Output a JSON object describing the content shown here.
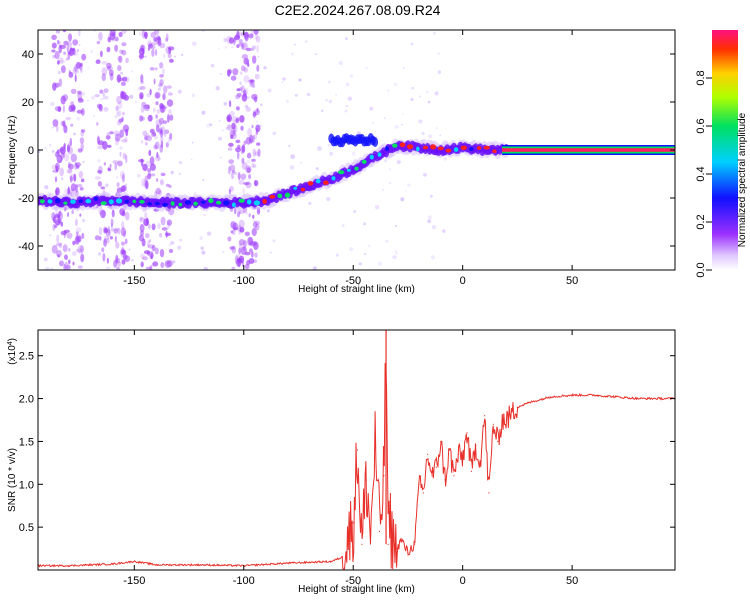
{
  "title": "C2E2.2024.267.08.09.R24",
  "colors": {
    "snr_line": "#e8302a",
    "ridge_high": "#ff2020",
    "ridge_mid": "#00e060",
    "ridge_low": "#1010ff",
    "scatter": "#a040ff"
  },
  "chart_data": [
    {
      "type": "heatmap",
      "xlabel": "Height of straight line (km)",
      "ylabel": "Frequency (Hz)",
      "xlim": [
        -194,
        97
      ],
      "ylim": [
        -50,
        50
      ],
      "xticks": [
        -150,
        -100,
        -50,
        0,
        50
      ],
      "xtick_labels": [
        "-150",
        "-100",
        "-50",
        "0",
        "50"
      ],
      "yticks": [
        -40,
        -20,
        0,
        20,
        40
      ],
      "ytick_labels": [
        "-40",
        "-20",
        "0",
        "20",
        "40"
      ],
      "colorbar": {
        "label": "Normalized spectral amplitude",
        "range": [
          0,
          1
        ],
        "ticks": [
          0.0,
          0.2,
          0.4,
          0.6,
          0.8
        ],
        "tick_labels": [
          "0.0",
          "0.2",
          "0.4",
          "0.6",
          "0.8"
        ]
      },
      "ridge": {
        "x": [
          -194,
          -180,
          -160,
          -140,
          -120,
          -100,
          -90,
          -80,
          -70,
          -60,
          -50,
          -40,
          -30,
          -20,
          -10,
          0,
          10,
          20,
          97
        ],
        "y": [
          -21,
          -22,
          -21,
          -22,
          -22,
          -22,
          -21,
          -18,
          -15,
          -12,
          -8,
          -3,
          2,
          1,
          0,
          1,
          0,
          0,
          0
        ]
      },
      "secondary_band": {
        "x": [
          -60,
          -40
        ],
        "y": [
          3,
          5
        ]
      }
    },
    {
      "type": "line",
      "xlabel": "Height of straight line (km)",
      "ylabel": "SNR (10 * v/v)",
      "y_multiplier": "(x10",
      "y_multiplier_exp": "4",
      "y_multiplier_close": ")",
      "xlim": [
        -194,
        97
      ],
      "ylim": [
        0,
        2.8
      ],
      "xticks": [
        -150,
        -100,
        -50,
        0,
        50
      ],
      "xtick_labels": [
        "-150",
        "-100",
        "-50",
        "0",
        "50"
      ],
      "yticks": [
        0.5,
        1.0,
        1.5,
        2.0,
        2.5
      ],
      "ytick_labels": [
        "0.5",
        "1.0",
        "1.5",
        "2.0",
        "2.5"
      ],
      "series": [
        {
          "x": [
            -194,
            -180,
            -160,
            -150,
            -140,
            -120,
            -100,
            -80,
            -60,
            -55,
            -50,
            -48,
            -46,
            -44,
            -42,
            -40,
            -38,
            -36,
            -35,
            -34,
            -33,
            -32,
            -31,
            -30,
            -28,
            -25,
            -22,
            -20,
            -18,
            -16,
            -14,
            -12,
            -10,
            -8,
            -6,
            -4,
            -2,
            0,
            2,
            4,
            6,
            8,
            10,
            12,
            14,
            16,
            18,
            20,
            25,
            30,
            40,
            50,
            60,
            70,
            80,
            90,
            97
          ],
          "y": [
            0.05,
            0.05,
            0.07,
            0.1,
            0.06,
            0.06,
            0.05,
            0.08,
            0.1,
            0.15,
            0.55,
            1.4,
            0.3,
            1.05,
            0.4,
            1.5,
            0.45,
            1.1,
            2.78,
            0.3,
            0.55,
            0.2,
            0.3,
            0.25,
            0.35,
            0.2,
            0.3,
            1.0,
            0.9,
            1.35,
            1.1,
            1.2,
            1.5,
            1.05,
            1.4,
            1.1,
            1.35,
            1.3,
            1.6,
            1.15,
            1.45,
            1.25,
            1.8,
            0.9,
            1.7,
            1.5,
            1.75,
            1.75,
            1.9,
            1.95,
            2.02,
            2.04,
            2.04,
            2.02,
            2.0,
            2.0,
            2.0
          ]
        }
      ]
    }
  ]
}
